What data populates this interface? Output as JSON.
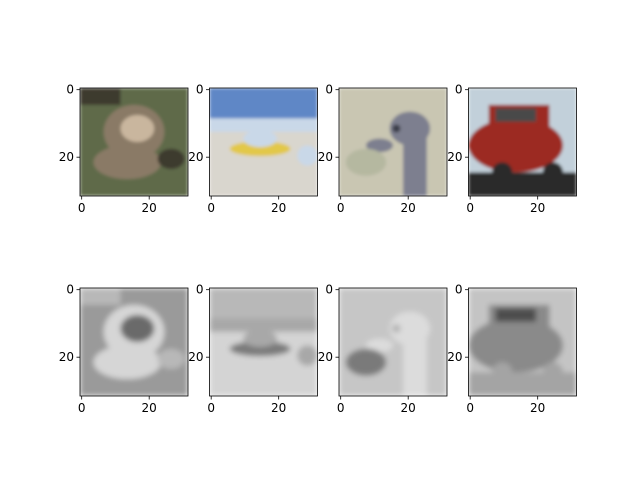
{
  "chart_data": {
    "type": "image_grid",
    "rows": 2,
    "cols": 4,
    "image_size": [
      32,
      32
    ],
    "grid": false,
    "xticks": [
      0,
      20
    ],
    "yticks": [
      0,
      20
    ],
    "xlim": [
      -0.5,
      31.5
    ],
    "ylim": [
      31.5,
      -0.5
    ],
    "panels": [
      {
        "row": 0,
        "col": 0,
        "content": "dog",
        "style": "color",
        "colors": [
          "#5e6b4a",
          "#8a7a66",
          "#c9b69e",
          "#3e3a2e"
        ]
      },
      {
        "row": 0,
        "col": 1,
        "content": "boat on beach",
        "style": "color",
        "colors": [
          "#5f87c6",
          "#d9d6ce",
          "#e2c84a",
          "#c9d8e8"
        ]
      },
      {
        "row": 0,
        "col": 2,
        "content": "ostrich head",
        "style": "color",
        "colors": [
          "#c9c6b2",
          "#7d7f8f",
          "#b5b8a0",
          "#3b3d48"
        ]
      },
      {
        "row": 0,
        "col": 3,
        "content": "red car",
        "style": "color",
        "colors": [
          "#9c2a22",
          "#c2d0da",
          "#4a4a4a",
          "#2a2a2a"
        ]
      },
      {
        "row": 1,
        "col": 0,
        "content": "dog",
        "style": "grayscale reconstruction",
        "colors": [
          "#9a9a9a",
          "#d6d6d6",
          "#6a6a6a",
          "#b8b8b8"
        ]
      },
      {
        "row": 1,
        "col": 1,
        "content": "boat on beach",
        "style": "grayscale reconstruction",
        "colors": [
          "#b8b8b8",
          "#d4d4d4",
          "#7a7a7a",
          "#a8a8a8"
        ]
      },
      {
        "row": 1,
        "col": 2,
        "content": "ostrich head",
        "style": "grayscale reconstruction",
        "colors": [
          "#c6c6c6",
          "#dcdcdc",
          "#7a7a7a",
          "#b0b0b0"
        ]
      },
      {
        "row": 1,
        "col": 3,
        "content": "red car",
        "style": "grayscale reconstruction",
        "colors": [
          "#8a8a8a",
          "#c4c4c4",
          "#4e4e4e",
          "#a4a4a4"
        ]
      }
    ]
  }
}
